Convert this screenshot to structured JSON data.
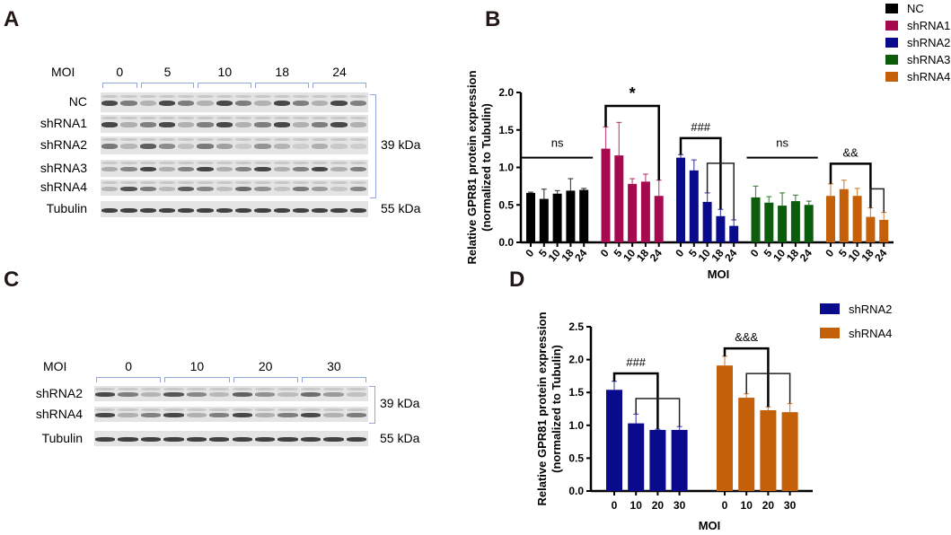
{
  "panels": {
    "a": "A",
    "b": "B",
    "c": "C",
    "d": "D"
  },
  "blot_a": {
    "moi_label": "MOI",
    "moi_groups": [
      {
        "label": "0",
        "lanes": 2
      },
      {
        "label": "5",
        "lanes": 3
      },
      {
        "label": "10",
        "lanes": 3
      },
      {
        "label": "18",
        "lanes": 3
      },
      {
        "label": "24",
        "lanes": 3
      }
    ],
    "rows": [
      "NC",
      "shRNA1",
      "shRNA2",
      "shRNA3",
      "shRNA4",
      "Tubulin"
    ],
    "kda_gpr81": "39 kDa",
    "kda_tubulin": "55 kDa"
  },
  "blot_c": {
    "moi_label": "MOI",
    "moi_groups": [
      {
        "label": "0",
        "lanes": 3
      },
      {
        "label": "10",
        "lanes": 3
      },
      {
        "label": "20",
        "lanes": 3
      },
      {
        "label": "30",
        "lanes": 3
      }
    ],
    "rows": [
      "shRNA2",
      "shRNA4",
      "Tubulin"
    ],
    "kda_gpr81": "39 kDa",
    "kda_tubulin": "55 kDa"
  },
  "chart_data": [
    {
      "type": "bar",
      "panel": "B",
      "ylabel": "Relative GPR81 protein expression (normalized to Tubulin)",
      "ylabel_line1": "Relative GPR81 protein expression",
      "ylabel_line2": "(normalized to Tubulin)",
      "xlabel": "MOI",
      "ylim": [
        0,
        2.0
      ],
      "yticks": [
        "0.0",
        "0.5",
        "1.0",
        "1.5",
        "2.0"
      ],
      "categories": [
        "0",
        "5",
        "10",
        "18",
        "24"
      ],
      "legend_position": "top-right",
      "series": [
        {
          "name": "NC",
          "color": "#000000",
          "values": [
            0.66,
            0.58,
            0.65,
            0.69,
            0.7
          ],
          "errors": [
            0.01,
            0.13,
            0.04,
            0.16,
            0.02
          ],
          "annotation": "ns",
          "annotation_type": "line"
        },
        {
          "name": "shRNA1",
          "color": "#a50a4f",
          "values": [
            1.25,
            1.16,
            0.78,
            0.81,
            0.62
          ],
          "errors": [
            0.29,
            0.44,
            0.07,
            0.1,
            0.21
          ],
          "annotation": "*",
          "annotation_type": "bracket",
          "comparisons": [
            [
              0,
              4
            ]
          ]
        },
        {
          "name": "shRNA2",
          "color": "#0a0a8c",
          "values": [
            1.13,
            0.96,
            0.54,
            0.35,
            0.22
          ],
          "errors": [
            0.04,
            0.14,
            0.12,
            0.09,
            0.08
          ],
          "annotation": "###",
          "annotation_type": "bracket",
          "comparisons": [
            [
              0,
              3
            ],
            [
              2,
              4
            ]
          ]
        },
        {
          "name": "shRNA3",
          "color": "#0b5c0b",
          "values": [
            0.6,
            0.53,
            0.49,
            0.55,
            0.5
          ],
          "errors": [
            0.15,
            0.08,
            0.17,
            0.08,
            0.05
          ],
          "annotation": "ns",
          "annotation_type": "line"
        },
        {
          "name": "shRNA4",
          "color": "#c45f0a",
          "values": [
            0.62,
            0.71,
            0.62,
            0.34,
            0.3
          ],
          "errors": [
            0.16,
            0.12,
            0.1,
            0.12,
            0.1
          ],
          "annotation": "&&",
          "annotation_type": "bracket",
          "comparisons": [
            [
              0,
              3
            ],
            [
              3,
              4
            ]
          ]
        }
      ]
    },
    {
      "type": "bar",
      "panel": "D",
      "ylabel": "Relative GPR81 protein expression (normalized to Tubulin)",
      "ylabel_line1": "Relative GPR81 protein expression",
      "ylabel_line2": "(normalized to Tubulin)",
      "xlabel": "MOI",
      "ylim": [
        0,
        2.5
      ],
      "yticks": [
        "0.0",
        "0.5",
        "1.0",
        "1.5",
        "2.0",
        "2.5"
      ],
      "categories": [
        "0",
        "10",
        "20",
        "30"
      ],
      "legend_position": "right",
      "series": [
        {
          "name": "shRNA2",
          "color": "#0a0a8c",
          "values": [
            1.54,
            1.03,
            0.93,
            0.93
          ],
          "errors": [
            0.13,
            0.14,
            0.01,
            0.05
          ],
          "annotation": "###",
          "annotation_type": "bracket",
          "comparisons": [
            [
              0,
              2
            ],
            [
              1,
              3
            ]
          ]
        },
        {
          "name": "shRNA4",
          "color": "#c45f0a",
          "values": [
            1.91,
            1.42,
            1.23,
            1.2
          ],
          "errors": [
            0.14,
            0.06,
            0.05,
            0.13
          ],
          "annotation": "&&&",
          "annotation_type": "bracket",
          "comparisons": [
            [
              0,
              2
            ],
            [
              1,
              3
            ]
          ]
        }
      ]
    }
  ]
}
